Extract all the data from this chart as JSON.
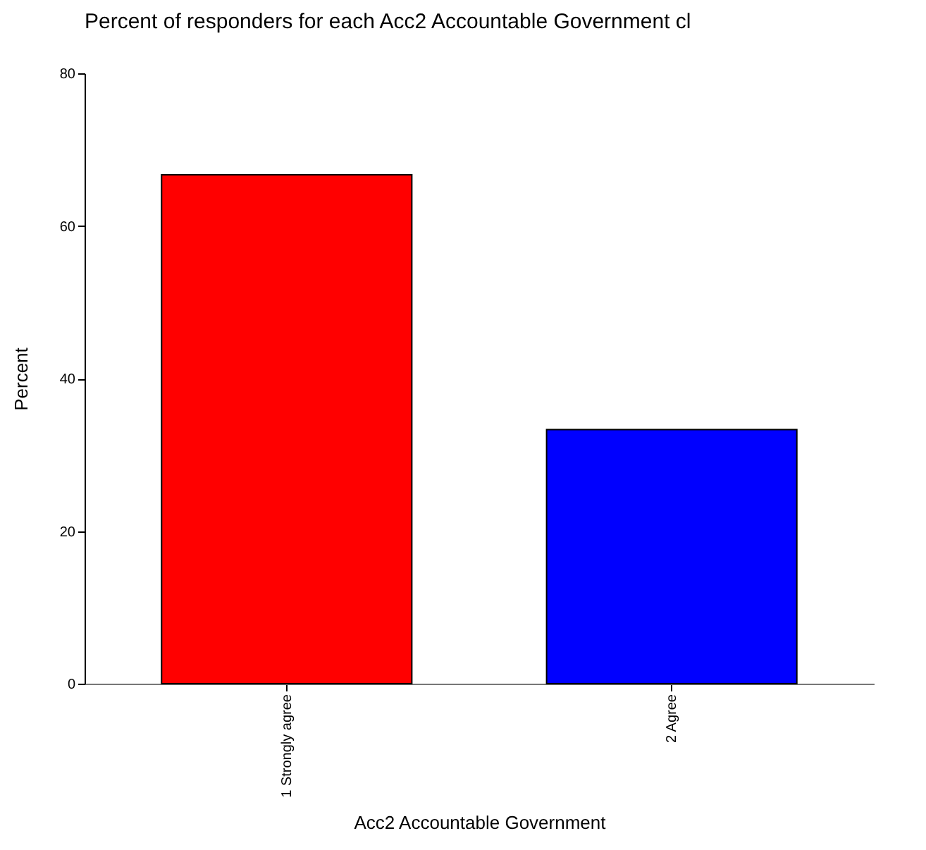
{
  "chart_data": {
    "type": "bar",
    "title": "Percent of responders for each Acc2 Accountable Government cl",
    "xlabel": "Acc2 Accountable Government",
    "ylabel": "Percent",
    "categories": [
      "1 Strongly agree",
      "2 Agree"
    ],
    "values": [
      66.7,
      33.3
    ],
    "colors": [
      "#ff0000",
      "#0000ff"
    ],
    "ylim": [
      0,
      80
    ],
    "yticks": [
      0,
      20,
      40,
      60,
      80
    ],
    "grid": false
  }
}
